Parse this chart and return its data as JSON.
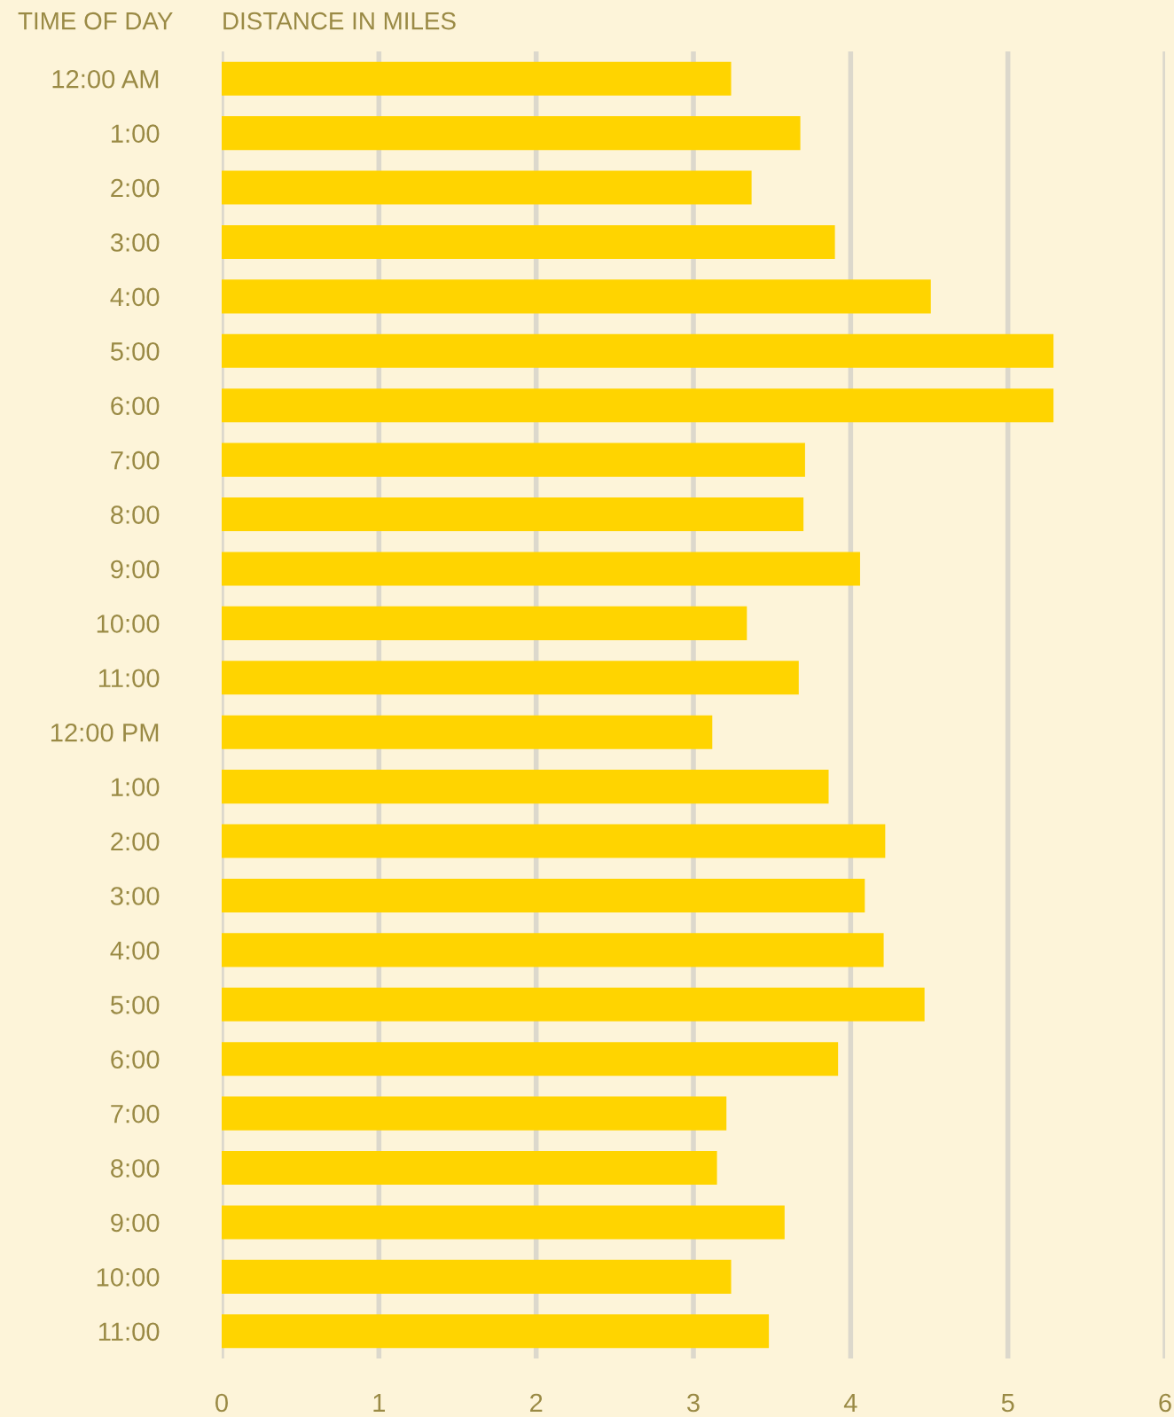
{
  "chart_data": {
    "type": "bar",
    "orientation": "horizontal",
    "xlabel": "DISTANCE IN MILES",
    "ylabel": "TIME OF DAY",
    "categories": [
      "12:00 AM",
      "1:00",
      "2:00",
      "3:00",
      "4:00",
      "5:00",
      "6:00",
      "7:00",
      "8:00",
      "9:00",
      "10:00",
      "11:00",
      "12:00 PM",
      "1:00",
      "2:00",
      "3:00",
      "4:00",
      "5:00",
      "6:00",
      "7:00",
      "8:00",
      "9:00",
      "10:00",
      "11:00"
    ],
    "values": [
      3.24,
      3.68,
      3.37,
      3.9,
      4.51,
      5.29,
      5.29,
      3.71,
      3.7,
      4.06,
      3.34,
      3.67,
      3.12,
      3.86,
      4.22,
      4.09,
      4.21,
      4.47,
      3.92,
      3.21,
      3.15,
      3.58,
      3.24,
      3.48
    ],
    "color": "#ffd400",
    "xlim": [
      0,
      6
    ],
    "xticks": [
      0,
      1,
      2,
      3,
      4,
      5,
      6
    ],
    "grid": "x",
    "legend": false
  }
}
